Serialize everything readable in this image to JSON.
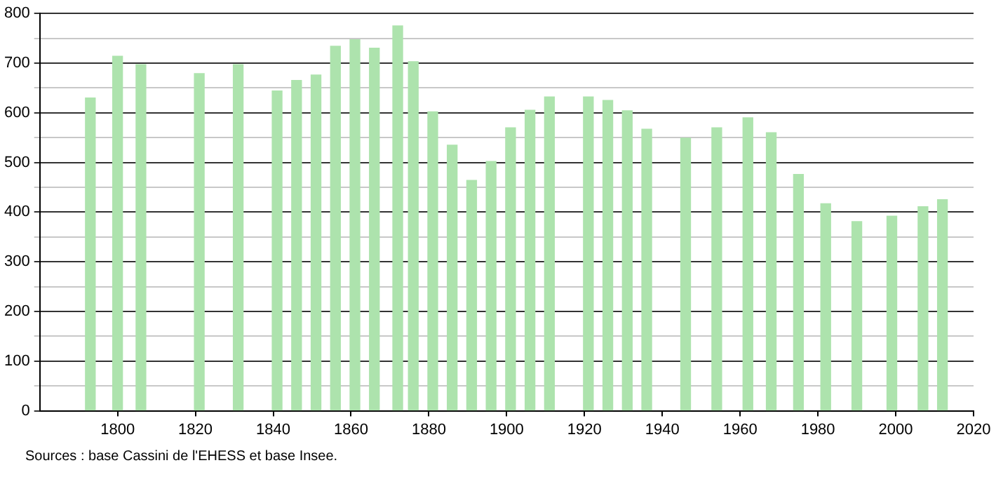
{
  "chart_data": {
    "type": "bar",
    "x": [
      1793,
      1800,
      1806,
      1821,
      1831,
      1841,
      1846,
      1851,
      1856,
      1861,
      1866,
      1872,
      1876,
      1881,
      1886,
      1891,
      1896,
      1901,
      1906,
      1911,
      1921,
      1926,
      1931,
      1936,
      1946,
      1954,
      1962,
      1968,
      1975,
      1982,
      1990,
      1999,
      2007,
      2012
    ],
    "values": [
      630,
      714,
      697,
      679,
      697,
      644,
      665,
      676,
      734,
      747,
      730,
      775,
      703,
      602,
      535,
      464,
      502,
      570,
      605,
      632,
      632,
      625,
      604,
      567,
      549,
      570,
      590,
      560,
      476,
      417,
      381,
      392,
      411,
      425
    ],
    "color": "#ade3ad",
    "xlim": [
      1780,
      2020
    ],
    "xticks": [
      1800,
      1820,
      1840,
      1860,
      1880,
      1900,
      1920,
      1940,
      1960,
      1980,
      2000,
      2020
    ],
    "ylim": [
      0,
      800
    ],
    "yticks": [
      0,
      {
        "value": 50,
        "label": null
      },
      100,
      {
        "value": 150,
        "label": null
      },
      200,
      {
        "value": 250,
        "label": null
      },
      300,
      {
        "value": 350,
        "label": null
      },
      400,
      {
        "value": 450,
        "label": null
      },
      500,
      {
        "value": 550,
        "label": null
      },
      600,
      {
        "value": 650,
        "label": null
      },
      700,
      {
        "value": 750,
        "label": null
      },
      800
    ],
    "grid": "y",
    "annotations": [
      "Sources : base Cassini de l'EHESS et base Insee."
    ]
  }
}
